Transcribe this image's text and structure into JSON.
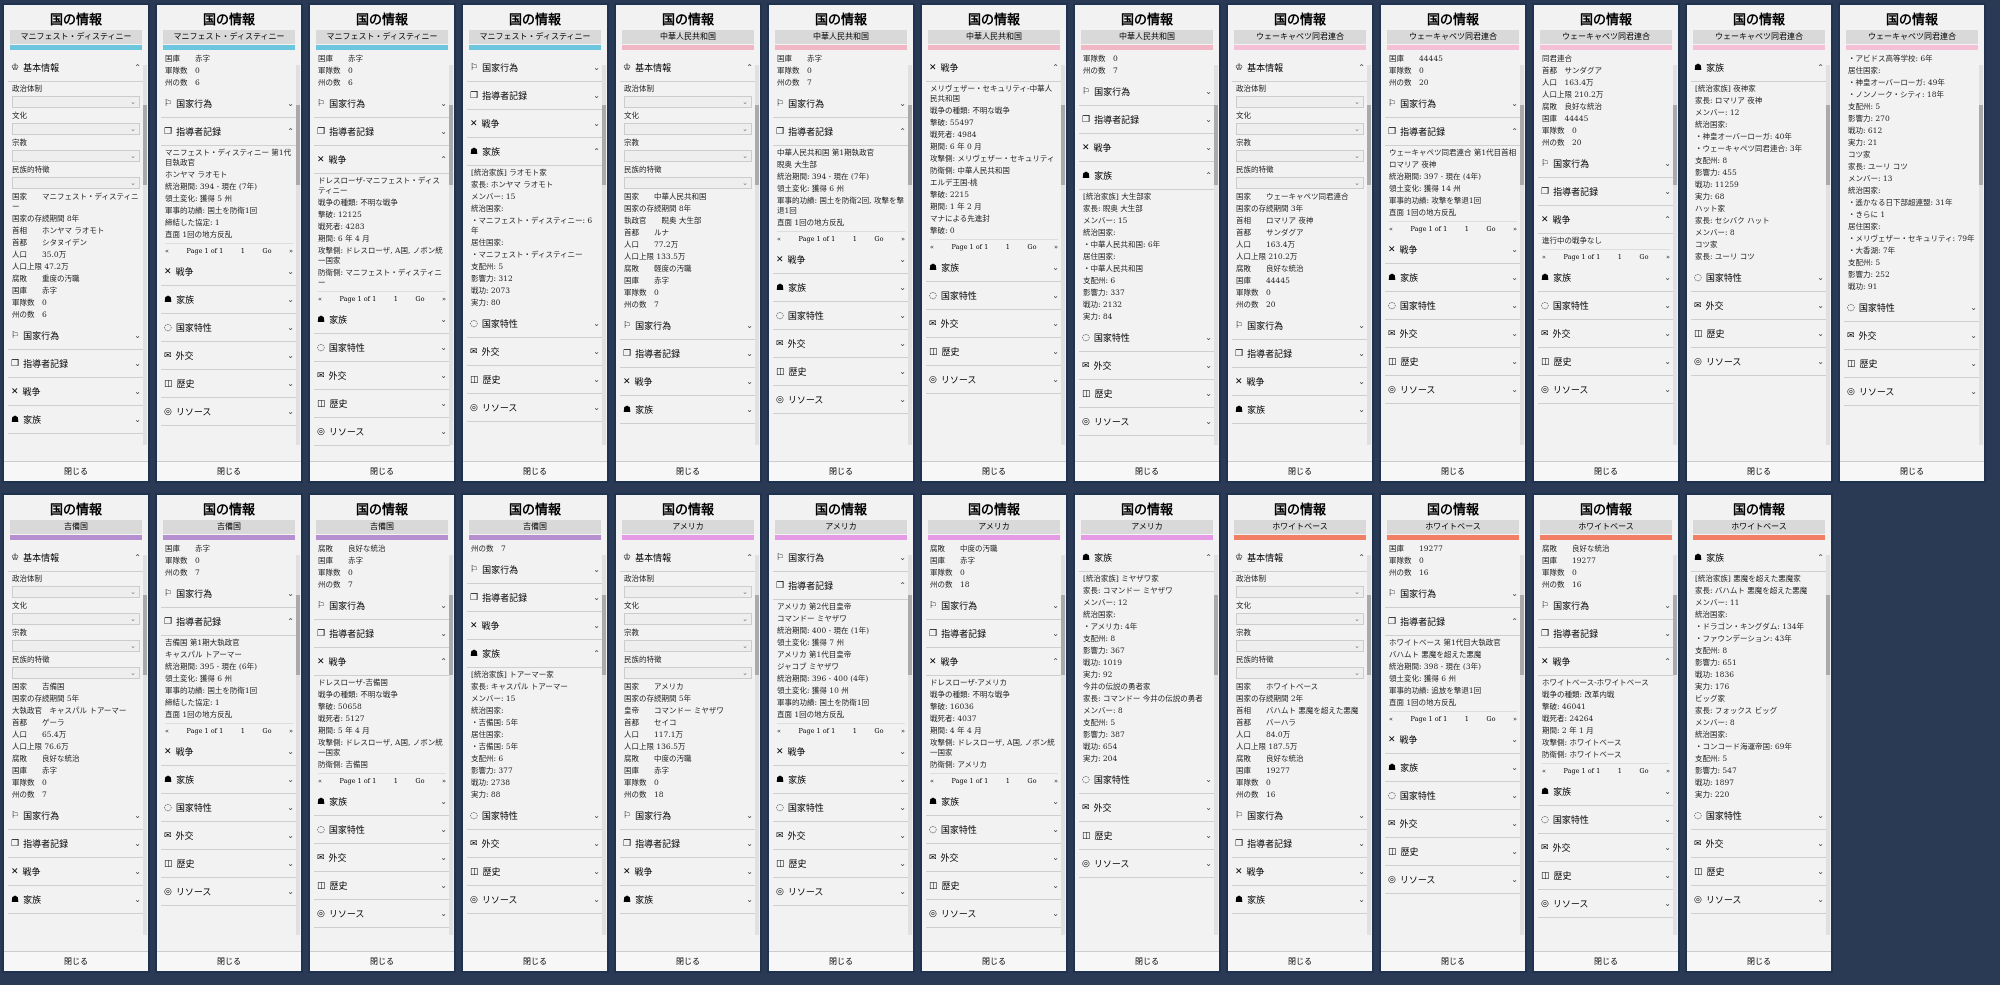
{
  "panel_title": "国の情報",
  "close_label": "閉じる",
  "sections": {
    "basic": "基本情報",
    "actions": "国家行為",
    "leaders": "指導者記録",
    "war": "戦争",
    "family": "家族",
    "traits": "国家特性",
    "diplomacy": "外交",
    "history": "歴史",
    "resources": "リソース"
  },
  "pager": {
    "prev": "«",
    "label": "Page 1 of 1",
    "page": "1",
    "go": "Go",
    "next": "»"
  },
  "countries": [
    {
      "name": "マニフェスト・ディスティニー",
      "color": "#6cc6de"
    },
    {
      "name": "中華人民共和国",
      "color": "#f2b7c4"
    },
    {
      "name": "ウェーキャペツ同君連合",
      "color": "#f5c0d6"
    },
    {
      "name": "吉備国",
      "color": "#b58fd0"
    },
    {
      "name": "アメリカ",
      "color": "#e59ae6"
    },
    {
      "name": "ホワイトベース",
      "color": "#f07f66"
    }
  ],
  "panels": [
    {
      "country": 0,
      "type": "basic",
      "lines": [
        "政治体制",
        "文化",
        "宗教",
        "民族的特徴",
        "国家　　マニフェスト・ディスティニー",
        "国家の存続期間 8年",
        "首相　　ホンヤマ ラオモト",
        "首都　　シタヌイデン",
        "人口　　35.0万",
        "人口上限 47.2万",
        "腐敗　　重度の汚職",
        "国庫　　赤字",
        "軍隊数　0",
        "州の数　6"
      ],
      "rows": [
        "actions",
        "leaders",
        "war",
        "family"
      ]
    },
    {
      "country": 0,
      "type": "leader",
      "head": [
        "国庫　　赤字",
        "軍隊数　0",
        "州の数　6"
      ],
      "rows": [
        "actions",
        "leaders"
      ],
      "lines": [
        "マニフェスト・ディスティニー 第1代目執政官",
        "ホンヤマ ラオモト",
        "統治期間: 394 - 現在 (7年)",
        "領土変化: 獲得 5 州",
        "軍事的功績: 国土を防衛1回",
        "締結した協定: 1",
        "直面 1回の地方反乱"
      ],
      "tail": [
        "war",
        "family",
        "traits",
        "diplomacy",
        "history",
        "resources"
      ]
    },
    {
      "country": 0,
      "type": "war",
      "head": [
        "国庫　　赤字",
        "軍隊数　0",
        "州の数　6"
      ],
      "rows": [
        "actions",
        "leaders",
        "war"
      ],
      "lines": [
        "ドレスローザ-マニフェスト・ディスティニー",
        "戦争の種類: 不明な戦争",
        "撃破: 12125",
        "戦死者: 4283",
        "期間: 6 年 4 月",
        "攻撃側: ドレスローザ, A国, ノボン統一国家",
        "防衛側: マニフェスト・ディスティニー"
      ],
      "tail": [
        "family",
        "traits",
        "diplomacy",
        "history",
        "resources"
      ]
    },
    {
      "country": 0,
      "type": "family",
      "head": [],
      "rows": [
        "actions",
        "leaders",
        "war",
        "family"
      ],
      "lines": [
        "[統治家族] ラオモト家",
        "家長: ホンヤマ ラオモト",
        "メンバー: 15",
        "統治国家:",
        "・マニフェスト・ディスティニー: 6年",
        "居住国家:",
        "・マニフェスト・ディスティニー",
        "支配州: 5",
        "影響力: 312",
        "戦功: 2073",
        "実力: 80"
      ],
      "tail": [
        "traits",
        "diplomacy",
        "history",
        "resources"
      ]
    },
    {
      "country": 1,
      "type": "basic",
      "lines": [
        "政治体制",
        "文化",
        "宗教",
        "民族的特徴",
        "国家　　中華人民共和国",
        "国家の存続期間 8年",
        "執政官　　睨奥 大生部",
        "首都　　ルナ",
        "人口　　77.2万",
        "人口上限 133.5万",
        "腐敗　　軽度の汚職",
        "国庫　　赤字",
        "軍隊数　0",
        "州の数　7"
      ],
      "rows": [
        "actions",
        "leaders",
        "war",
        "family"
      ]
    },
    {
      "country": 1,
      "type": "leader",
      "head": [
        "国庫　　赤字",
        "軍隊数　0",
        "州の数　7"
      ],
      "rows": [
        "actions",
        "leaders"
      ],
      "lines": [
        "中華人民共和国 第1期執政官",
        "睨奥 大生部",
        "統治期間: 394 - 現在 (7年)",
        "領土変化: 獲得 6 州",
        "軍事的功績: 国土を防衛2回, 攻撃を撃退1回",
        "直面 1回の地方反乱"
      ],
      "tail": [
        "war",
        "family",
        "traits",
        "diplomacy",
        "history",
        "resources"
      ]
    },
    {
      "country": 1,
      "type": "war",
      "head": [],
      "rows": [
        "war"
      ],
      "lines": [
        "メリヴェザー・セキュリティ-中華人民共和国",
        "戦争の種類: 不明な戦争",
        "撃破: 55497",
        "戦死者: 4984",
        "期間: 6 年 0 月",
        "攻撃側: メリヴェザー・セキュリティ",
        "防衛側: 中華人民共和国",
        "エルデ王国-桃",
        "撃破: 2215",
        "期間: 1 年 2 月",
        "マナによる先進封",
        "撃破: 0"
      ],
      "tail": [
        "family",
        "traits",
        "diplomacy",
        "history",
        "resources"
      ]
    },
    {
      "country": 1,
      "type": "family",
      "head": [
        "軍隊数　0",
        "州の数　7"
      ],
      "rows": [
        "actions",
        "leaders",
        "war",
        "family"
      ],
      "lines": [
        "[統治家族] 大生部家",
        "家長: 睨奥 大生部",
        "メンバー: 15",
        "統治国家:",
        "・中華人民共和国: 6年",
        "居住国家:",
        "・中華人民共和国",
        "支配州: 6",
        "影響力: 337",
        "戦功: 2132",
        "実力: 84"
      ],
      "tail": [
        "traits",
        "diplomacy",
        "history",
        "resources"
      ]
    },
    {
      "country": 2,
      "type": "basic",
      "lines": [
        "政治体制",
        "文化",
        "宗教",
        "民族的特徴",
        "国家　　ウェーキャペツ同君連合",
        "国家の存続期間 3年",
        "首相　　ロマリア 夜神",
        "首都　　サンダグア",
        "人口　　163.4万",
        "人口上限 210.2万",
        "腐敗　　良好な統治",
        "国庫　　44445",
        "軍隊数　0",
        "州の数　20"
      ],
      "rows": [
        "actions",
        "leaders",
        "war",
        "family"
      ]
    },
    {
      "country": 2,
      "type": "leader",
      "head": [
        "国庫　　44445",
        "軍隊数　0",
        "州の数　20"
      ],
      "rows": [
        "actions",
        "leaders"
      ],
      "lines": [
        "ウェーキャペツ同君連合 第1代目首相",
        "ロマリア 夜神",
        "統治期間: 397 - 現在 (4年)",
        "領土変化: 獲得 14 州",
        "軍事的功績: 攻撃を撃退1回",
        "直面 1回の地方反乱"
      ],
      "tail": [
        "war",
        "family",
        "traits",
        "diplomacy",
        "history",
        "resources"
      ]
    },
    {
      "country": 2,
      "type": "war",
      "head": [
        "同君連合",
        "首都　サンダグア",
        "人口　163.4万",
        "人口上限 210.2万",
        "腐敗　良好な統治",
        "国庫　44445",
        "軍隊数　0",
        "州の数　20"
      ],
      "rows": [
        "actions",
        "leaders",
        "war"
      ],
      "lines": [
        "進行中の戦争なし"
      ],
      "tail": [
        "family",
        "traits",
        "diplomacy",
        "history",
        "resources"
      ]
    },
    {
      "country": 2,
      "type": "family",
      "head": [],
      "rows": [
        "family"
      ],
      "lines": [
        "[統治家族] 夜神家",
        "家長: ロマリア 夜神",
        "メンバー: 12",
        "統治国家:",
        "・神皇オーバーローガ: 40年",
        "・ウェーキャペツ同君連合: 3年",
        "支配州: 8",
        "影響力: 455",
        "戦功: 11259",
        "実力: 68",
        "ハット家",
        "家長: セシバク ハット",
        "メンバー: 8",
        "コツ家",
        "家長: ユーリ コツ"
      ],
      "tail": [
        "traits",
        "diplomacy",
        "history",
        "resources"
      ]
    },
    {
      "country": 2,
      "type": "family",
      "head": [],
      "rows": [],
      "lines": [
        "・アビドス高等学校: 6年",
        "居住国家:",
        "・神皇オーバーローガ: 49年",
        "・ノンノーク・シティ: 18年",
        "支配州: 5",
        "影響力: 270",
        "戦功: 612",
        "実力: 21",
        "コツ家",
        "家長: ユーリ コツ",
        "メンバー: 13",
        "統治国家:",
        "・遙かなる日下部超連盟: 31年",
        "・きらに 1",
        "居住国家:",
        "・メリヴェザー・セキュリティ: 79年",
        "・大香湖: 7年",
        "支配州: 5",
        "影響力: 252",
        "戦功: 91"
      ],
      "tail": [
        "traits",
        "diplomacy",
        "history",
        "resources"
      ]
    },
    {
      "country": 3,
      "type": "basic",
      "lines": [
        "政治体制",
        "文化",
        "宗教",
        "民族的特徴",
        "国家　　吉備国",
        "国家の存続期間 5年",
        "大執政官　キャスパル トアーマー",
        "首都　　ゲーラ",
        "人口　　65.4万",
        "人口上限 76.6万",
        "腐敗　　良好な統治",
        "国庫　　赤字",
        "軍隊数　0",
        "州の数　7"
      ],
      "rows": [
        "actions",
        "leaders",
        "war",
        "family"
      ]
    },
    {
      "country": 3,
      "type": "leader",
      "head": [
        "国庫　　赤字",
        "軍隊数　0",
        "州の数　7"
      ],
      "rows": [
        "actions",
        "leaders"
      ],
      "lines": [
        "吉備国 第1期大執政官",
        "キャスパル トアーマー",
        "統治期間: 395 - 現在 (6年)",
        "領土変化: 獲得 6 州",
        "軍事的功績: 国土を防衛1回",
        "締結した協定: 1",
        "直面 1回の地方反乱"
      ],
      "tail": [
        "war",
        "family",
        "traits",
        "diplomacy",
        "history",
        "resources"
      ]
    },
    {
      "country": 3,
      "type": "war",
      "head": [
        "腐敗　　良好な統治",
        "国庫　　赤字",
        "軍隊数　0",
        "州の数　7"
      ],
      "rows": [
        "actions",
        "leaders",
        "war"
      ],
      "lines": [
        "ドレスローザ-吉備国",
        "戦争の種類: 不明な戦争",
        "撃破: 50658",
        "戦死者: 5127",
        "期間: 5 年 4 月",
        "攻撃側: ドレスローザ, A国, ノボン統一国家",
        "防衛側: 吉備国"
      ],
      "tail": [
        "family",
        "traits",
        "diplomacy",
        "history",
        "resources"
      ]
    },
    {
      "country": 3,
      "type": "family",
      "head": [
        "州の数　7"
      ],
      "rows": [
        "actions",
        "leaders",
        "war",
        "family"
      ],
      "lines": [
        "[統治家族] トアーマー家",
        "家長: キャスパル トアーマー",
        "メンバー: 15",
        "統治国家:",
        "・吉備国: 5年",
        "居住国家:",
        "・吉備国: 5年",
        "支配州: 6",
        "影響力: 377",
        "戦功: 2738",
        "実力: 88"
      ],
      "tail": [
        "traits",
        "diplomacy",
        "history",
        "resources"
      ]
    },
    {
      "country": 4,
      "type": "basic",
      "lines": [
        "政治体制",
        "文化",
        "宗教",
        "民族的特徴",
        "国家　　アメリカ",
        "国家の存続期間 5年",
        "皇帝　　コマンドー ミヤザワ",
        "首都　　セイコ",
        "人口　　117.1万",
        "人口上限 136.5万",
        "腐敗　　中度の汚職",
        "国庫　　赤字",
        "軍隊数　0",
        "州の数　18"
      ],
      "rows": [
        "actions",
        "leaders",
        "war",
        "family"
      ]
    },
    {
      "country": 4,
      "type": "leader",
      "head": [],
      "rows": [
        "actions",
        "leaders"
      ],
      "lines": [
        "アメリカ 第2代目皇帝",
        "コマンドー ミヤザワ",
        "統治期間: 400 - 現在 (1年)",
        "領土変化: 獲得 7 州",
        "アメリカ 第1代目皇帝",
        "ジャコブ ミヤザワ",
        "統治期間: 396 - 400 (4年)",
        "領土変化: 獲得 10 州",
        "軍事的功績: 国土を防衛1回",
        "直面 1回の地方反乱"
      ],
      "tail": [
        "war",
        "family",
        "traits",
        "diplomacy",
        "history",
        "resources"
      ]
    },
    {
      "country": 4,
      "type": "war",
      "head": [
        "腐敗　　中度の汚職",
        "国庫　　赤字",
        "軍隊数　0",
        "州の数　18"
      ],
      "rows": [
        "actions",
        "leaders",
        "war"
      ],
      "lines": [
        "ドレスローザ-アメリカ",
        "戦争の種類: 不明な戦争",
        "撃破: 16036",
        "戦死者: 4037",
        "期間: 4 年 4 月",
        "攻撃側: ドレスローザ, A国, ノボン統一国家",
        "防衛側: アメリカ"
      ],
      "tail": [
        "family",
        "traits",
        "diplomacy",
        "history",
        "resources"
      ]
    },
    {
      "country": 4,
      "type": "family",
      "head": [],
      "rows": [
        "family"
      ],
      "lines": [
        "[統治家族] ミヤザワ家",
        "家長: コマンドー ミヤザワ",
        "メンバー: 12",
        "統治国家:",
        "・アメリカ: 4年",
        "支配州: 8",
        "影響力: 367",
        "戦功: 1019",
        "実力: 92",
        "今井の伝説の勇者家",
        "家長: コマンドー 今井の伝説の勇者",
        "メンバー: 8",
        "支配州: 5",
        "影響力: 387",
        "戦功: 654",
        "実力: 204"
      ],
      "tail": [
        "traits",
        "diplomacy",
        "history",
        "resources"
      ]
    },
    {
      "country": 5,
      "type": "basic",
      "lines": [
        "政治体制",
        "文化",
        "宗教",
        "民族的特徴",
        "国家　　ホワイトベース",
        "国家の存続期間 2年",
        "首相　　バハムト 悪魔を超えた悪魔",
        "首都　　バーハラ",
        "人口　　84.0万",
        "人口上限 187.5万",
        "腐敗　　良好な統治",
        "国庫　　19277",
        "軍隊数　0",
        "州の数　16"
      ],
      "rows": [
        "actions",
        "leaders",
        "war",
        "family"
      ]
    },
    {
      "country": 5,
      "type": "leader",
      "head": [
        "国庫　　19277",
        "軍隊数　0",
        "州の数　16"
      ],
      "rows": [
        "actions",
        "leaders"
      ],
      "lines": [
        "ホワイトベース 第1代目大執政官",
        "バハムト 悪魔を超えた悪魔",
        "統治期間: 398 - 現在 (3年)",
        "領土変化: 獲得 6 州",
        "軍事的功績: 追放を撃退1回",
        "直面 1回の地方反乱"
      ],
      "tail": [
        "war",
        "family",
        "traits",
        "diplomacy",
        "history",
        "resources"
      ]
    },
    {
      "country": 5,
      "type": "war",
      "head": [
        "腐敗　　良好な統治",
        "国庫　　19277",
        "軍隊数　0",
        "州の数　16"
      ],
      "rows": [
        "actions",
        "leaders",
        "war"
      ],
      "lines": [
        "ホワイトベース-ホワイトベース",
        "戦争の種類: 改革内戦",
        "撃破: 46041",
        "戦死者: 24264",
        "期間: 2 年 1 月",
        "攻撃側: ホワイトベース",
        "防衛側: ホワイトベース"
      ],
      "tail": [
        "family",
        "traits",
        "diplomacy",
        "history",
        "resources"
      ]
    },
    {
      "country": 5,
      "type": "family",
      "head": [],
      "rows": [
        "family"
      ],
      "lines": [
        "[統治家族] 悪魔を超えた悪魔家",
        "家長: バハムト 悪魔を超えた悪魔",
        "メンバー: 11",
        "統治国家:",
        "・ドラゴン・キングダム: 134年",
        "・ファウンデーション: 43年",
        "支配州: 8",
        "影響力: 651",
        "戦功: 1836",
        "実力: 176",
        "ビッグ家",
        "家長: フォックス ビッグ",
        "メンバー: 8",
        "統治国家:",
        "・コンコード海運帝国: 69年",
        "支配州: 5",
        "影響力: 547",
        "戦功: 1897",
        "実力: 220"
      ],
      "tail": [
        "traits",
        "diplomacy",
        "history",
        "resources"
      ]
    }
  ],
  "icons": {
    "basic": "crown-icon",
    "actions": "flag-icon",
    "leaders": "book-icon",
    "war": "crossed-swords-icon",
    "family": "people-icon",
    "traits": "shield-icon",
    "diplomacy": "handshake-icon",
    "history": "scroll-icon",
    "resources": "coins-icon"
  }
}
